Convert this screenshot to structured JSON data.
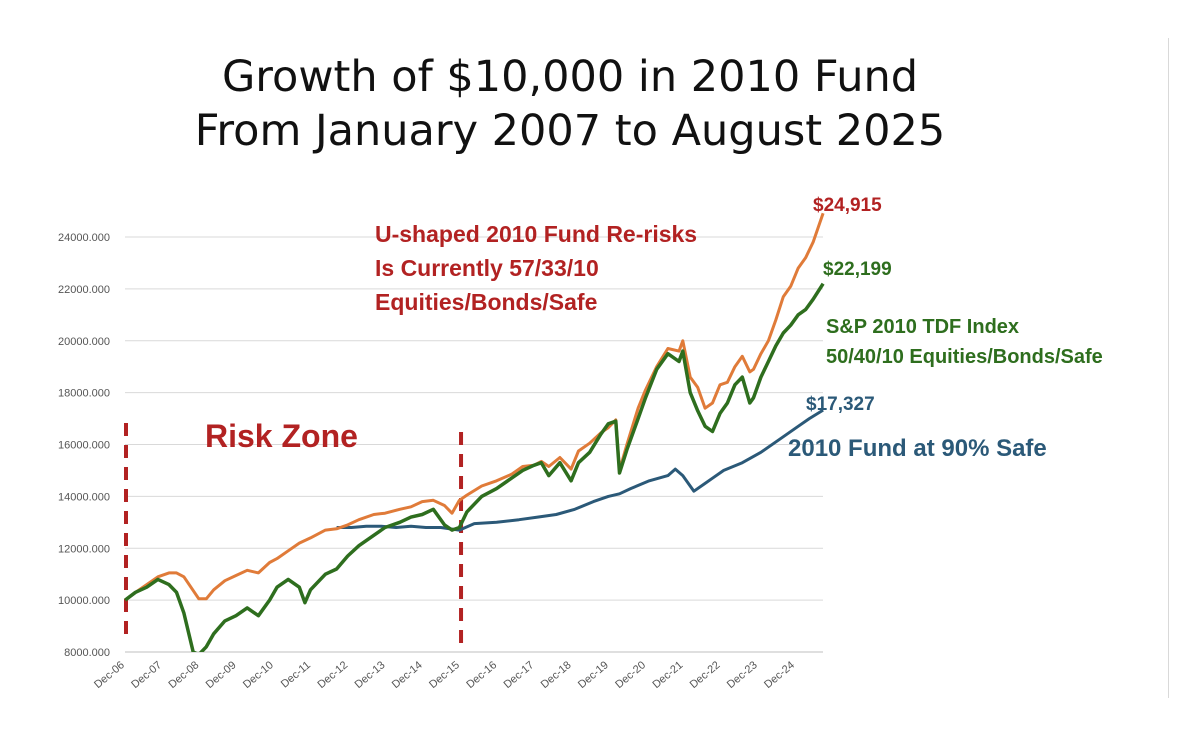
{
  "title_line1": "Growth of $10,000 in 2010 Fund",
  "title_line2": "From January 2007 to August 2025",
  "colors": {
    "fund": "#E07B39",
    "index": "#2E6E1E",
    "safe": "#2B5978",
    "red": "#B22222"
  },
  "annotations": {
    "rerisk": [
      "U-shaped 2010 Fund Re-risks",
      "Is Currently 57/33/10",
      "Equities/Bonds/Safe"
    ],
    "risk_zone": "Risk Zone",
    "index_label": [
      "S&P 2010 TDF Index",
      "50/40/10 Equities/Bonds/Safe"
    ],
    "safe_label": "2010 Fund at 90% Safe",
    "end_fund": "$24,915",
    "end_index": "$22,199",
    "end_safe": "$17,327"
  },
  "chart_data": {
    "type": "line",
    "ylim": [
      8000,
      25000
    ],
    "yticks": [
      8000,
      10000,
      12000,
      14000,
      16000,
      18000,
      20000,
      22000,
      24000
    ],
    "ytick_labels": [
      "8000.000",
      "10000.000",
      "12000.000",
      "14000.000",
      "16000.000",
      "18000.000",
      "20000.000",
      "22000.000",
      "24000.000"
    ],
    "xtick_labels": [
      "Dec-06",
      "Dec-07",
      "Dec-08",
      "Dec-09",
      "Dec-10",
      "Dec-11",
      "Dec-12",
      "Dec-13",
      "Dec-14",
      "Dec-15",
      "Dec-16",
      "Dec-17",
      "Dec-18",
      "Dec-19",
      "Dec-20",
      "Dec-21",
      "Dec-22",
      "Dec-23",
      "Dec-24"
    ],
    "xlim": [
      2006.917,
      2025.667
    ],
    "risk_zone_bounds": [
      2006.917,
      2015.917
    ],
    "series": [
      {
        "key": "fund",
        "x": [
          2006.92,
          2007.2,
          2007.5,
          2007.8,
          2008.1,
          2008.3,
          2008.5,
          2008.9,
          2009.1,
          2009.3,
          2009.6,
          2009.9,
          2010.2,
          2010.5,
          2010.8,
          2011.0,
          2011.3,
          2011.6,
          2011.9,
          2012.3,
          2012.6,
          2012.9,
          2013.2,
          2013.6,
          2013.9,
          2014.3,
          2014.6,
          2014.9,
          2015.2,
          2015.5,
          2015.7,
          2015.9,
          2016.1,
          2016.5,
          2016.9,
          2017.3,
          2017.6,
          2017.9,
          2018.1,
          2018.3,
          2018.6,
          2018.9,
          2019.1,
          2019.4,
          2019.7,
          2019.9,
          2020.1,
          2020.2,
          2020.4,
          2020.7,
          2020.9,
          2021.2,
          2021.5,
          2021.8,
          2021.9,
          2022.1,
          2022.3,
          2022.5,
          2022.7,
          2022.9,
          2023.1,
          2023.3,
          2023.5,
          2023.7,
          2023.8,
          2024.0,
          2024.2,
          2024.4,
          2024.6,
          2024.8,
          2025.0,
          2025.2,
          2025.4,
          2025.67
        ],
        "y": [
          10000,
          10300,
          10600,
          10900,
          11050,
          11050,
          10900,
          10050,
          10050,
          10400,
          10750,
          10950,
          11150,
          11050,
          11450,
          11600,
          11900,
          12200,
          12400,
          12700,
          12750,
          12900,
          13100,
          13300,
          13350,
          13500,
          13600,
          13800,
          13850,
          13650,
          13350,
          13850,
          14050,
          14400,
          14600,
          14850,
          15150,
          15200,
          15350,
          15150,
          15500,
          15050,
          15750,
          16050,
          16450,
          16650,
          16950,
          15000,
          16000,
          17400,
          18100,
          19000,
          19700,
          19600,
          20000,
          18600,
          18200,
          17400,
          17600,
          18300,
          18400,
          19000,
          19400,
          18800,
          18900,
          19500,
          20000,
          20800,
          21700,
          22100,
          22800,
          23200,
          23800,
          24915
        ]
      },
      {
        "key": "index",
        "x": [
          2006.92,
          2007.2,
          2007.5,
          2007.8,
          2008.1,
          2008.3,
          2008.5,
          2008.75,
          2008.9,
          2009.1,
          2009.3,
          2009.6,
          2009.9,
          2010.2,
          2010.5,
          2010.8,
          2011.0,
          2011.3,
          2011.6,
          2011.75,
          2011.9,
          2012.3,
          2012.6,
          2012.9,
          2013.2,
          2013.6,
          2013.9,
          2014.3,
          2014.6,
          2014.9,
          2015.2,
          2015.5,
          2015.7,
          2015.9,
          2016.1,
          2016.5,
          2016.9,
          2017.3,
          2017.6,
          2017.9,
          2018.1,
          2018.3,
          2018.6,
          2018.9,
          2019.1,
          2019.4,
          2019.7,
          2019.9,
          2020.1,
          2020.2,
          2020.4,
          2020.7,
          2020.9,
          2021.2,
          2021.5,
          2021.8,
          2021.9,
          2022.1,
          2022.3,
          2022.5,
          2022.7,
          2022.9,
          2023.1,
          2023.3,
          2023.5,
          2023.7,
          2023.8,
          2024.0,
          2024.2,
          2024.4,
          2024.6,
          2024.8,
          2025.0,
          2025.2,
          2025.4,
          2025.67
        ],
        "y": [
          10000,
          10300,
          10500,
          10800,
          10600,
          10300,
          9500,
          8000,
          7900,
          8200,
          8700,
          9200,
          9400,
          9700,
          9400,
          10000,
          10500,
          10800,
          10500,
          9900,
          10400,
          11000,
          11200,
          11700,
          12100,
          12500,
          12800,
          13000,
          13200,
          13300,
          13500,
          12900,
          12700,
          12800,
          13400,
          14000,
          14300,
          14700,
          15000,
          15200,
          15300,
          14800,
          15300,
          14600,
          15300,
          15700,
          16400,
          16800,
          16900,
          14900,
          15800,
          17000,
          17800,
          18900,
          19500,
          19200,
          19600,
          18000,
          17300,
          16700,
          16500,
          17200,
          17600,
          18300,
          18600,
          17600,
          17800,
          18600,
          19200,
          19800,
          20300,
          20600,
          21000,
          21200,
          21600,
          22199
        ]
      },
      {
        "key": "safe",
        "x": [
          2012.6,
          2013.0,
          2013.4,
          2013.8,
          2014.2,
          2014.6,
          2015.0,
          2015.4,
          2015.9,
          2016.3,
          2016.9,
          2017.5,
          2018.0,
          2018.5,
          2019.0,
          2019.5,
          2019.9,
          2020.2,
          2020.5,
          2021.0,
          2021.5,
          2021.7,
          2021.9,
          2022.2,
          2022.5,
          2022.7,
          2023.0,
          2023.5,
          2024.0,
          2024.5,
          2025.0,
          2025.3,
          2025.67
        ],
        "y": [
          12800,
          12800,
          12850,
          12850,
          12800,
          12850,
          12800,
          12800,
          12700,
          12950,
          13000,
          13100,
          13200,
          13300,
          13500,
          13800,
          14000,
          14100,
          14300,
          14600,
          14800,
          15050,
          14800,
          14200,
          14500,
          14700,
          15000,
          15300,
          15700,
          16200,
          16700,
          17000,
          17327
        ]
      }
    ]
  }
}
